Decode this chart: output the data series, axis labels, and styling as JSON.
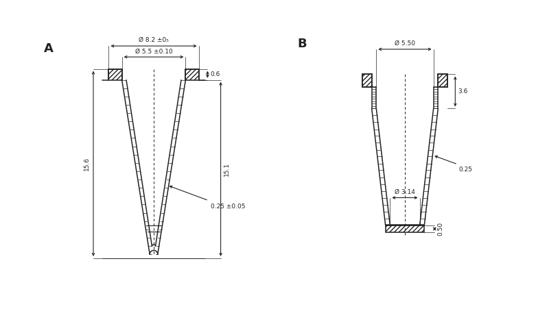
{
  "bg_color": "#ffffff",
  "line_color": "#222222",
  "label_A": "A",
  "label_B": "B",
  "dim_A_outer": "Ø 8.2 ±0₅",
  "dim_A_inner": "Ø 5.5 ±0.10",
  "dim_A_wall": "0.6",
  "dim_A_height_total": "15.6",
  "dim_A_height_inner": "15.1",
  "dim_A_wall_thick": "0.25 ±0.05",
  "dim_B_outer": "Ø 5.50",
  "dim_B_collar": "3.6",
  "dim_B_wall_thick": "0.25",
  "dim_B_inner_diam": "Ø 3.14",
  "dim_B_bottom": "0.50",
  "fontsize_label": 13,
  "fontsize_dim": 7
}
